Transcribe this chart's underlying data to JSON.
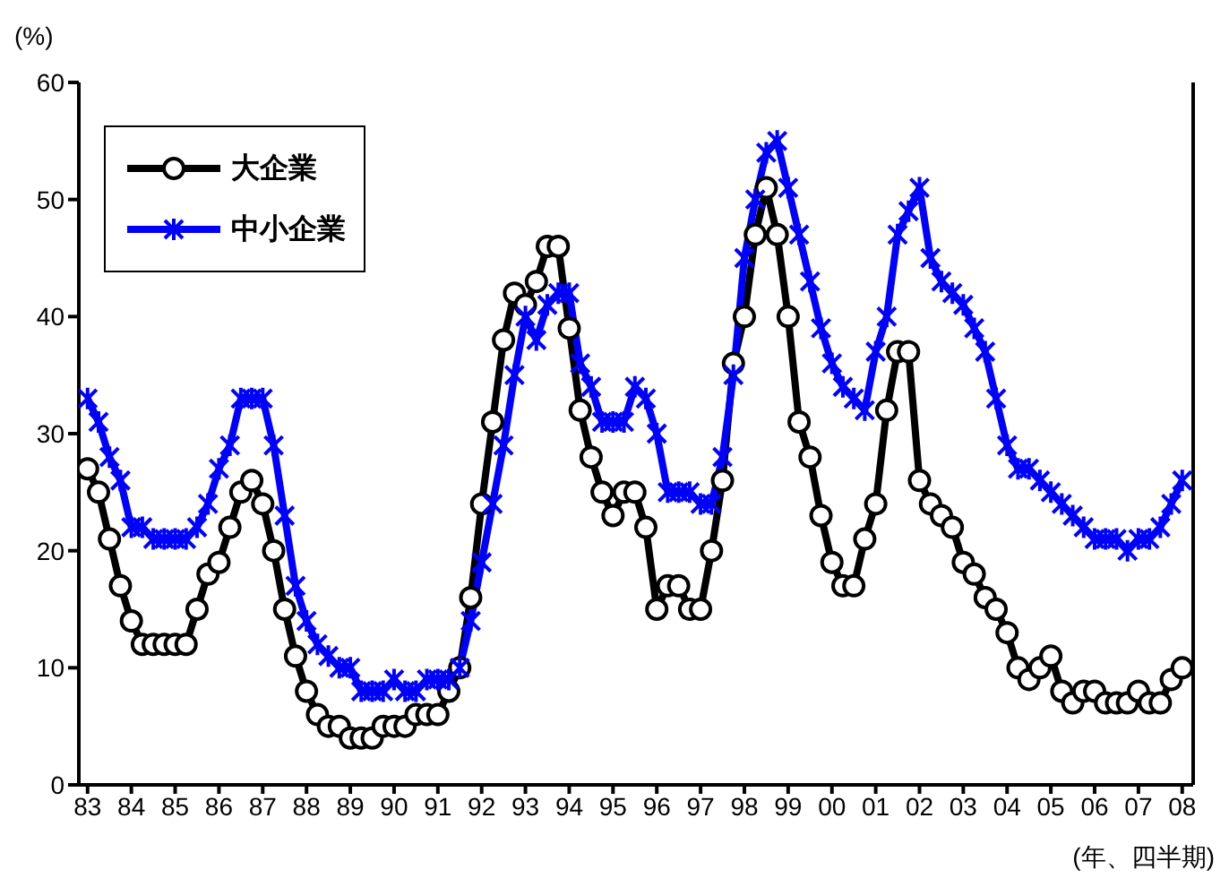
{
  "chart_data": {
    "type": "line",
    "ylabel": "(%)",
    "xlabel": "(年、四半期)",
    "x": [
      1983,
      1983.25,
      1983.5,
      1983.75,
      1984,
      1984.25,
      1984.5,
      1984.75,
      1985,
      1985.25,
      1985.5,
      1985.75,
      1986,
      1986.25,
      1986.5,
      1986.75,
      1987,
      1987.25,
      1987.5,
      1987.75,
      1988,
      1988.25,
      1988.5,
      1988.75,
      1989,
      1989.25,
      1989.5,
      1989.75,
      1990,
      1990.25,
      1990.5,
      1990.75,
      1991,
      1991.25,
      1991.5,
      1991.75,
      1992,
      1992.25,
      1992.5,
      1992.75,
      1993,
      1993.25,
      1993.5,
      1993.75,
      1994,
      1994.25,
      1994.5,
      1994.75,
      1995,
      1995.25,
      1995.5,
      1995.75,
      1996,
      1996.25,
      1996.5,
      1996.75,
      1997,
      1997.25,
      1997.5,
      1997.75,
      1998,
      1998.25,
      1998.5,
      1998.75,
      1999,
      1999.25,
      1999.5,
      1999.75,
      2000,
      2000.25,
      2000.5,
      2000.75,
      2001,
      2001.25,
      2001.5,
      2001.75,
      2002,
      2002.25,
      2002.5,
      2002.75,
      2003,
      2003.25,
      2003.5,
      2003.75,
      2004,
      2004.25,
      2004.5,
      2004.75,
      2005,
      2005.25,
      2005.5,
      2005.75,
      2006,
      2006.25,
      2006.5,
      2006.75,
      2007,
      2007.25,
      2007.5,
      2007.75,
      2008
    ],
    "series": [
      {
        "name": "大企業",
        "color": "#000000",
        "marker": "circle",
        "values": [
          27,
          25,
          21,
          17,
          14,
          12,
          12,
          12,
          12,
          12,
          15,
          18,
          19,
          22,
          25,
          26,
          24,
          20,
          15,
          11,
          8,
          6,
          5,
          5,
          4,
          4,
          4,
          5,
          5,
          5,
          6,
          6,
          6,
          8,
          10,
          16,
          24,
          31,
          38,
          42,
          41,
          43,
          46,
          46,
          39,
          32,
          28,
          25,
          23,
          25,
          25,
          22,
          15,
          17,
          17,
          15,
          15,
          20,
          26,
          36,
          40,
          47,
          51,
          47,
          40,
          31,
          28,
          23,
          19,
          17,
          17,
          21,
          24,
          32,
          37,
          37,
          26,
          24,
          23,
          22,
          19,
          18,
          16,
          15,
          13,
          10,
          9,
          10,
          11,
          8,
          7,
          8,
          8,
          7,
          7,
          7,
          8,
          7,
          7,
          9,
          10
        ]
      },
      {
        "name": "中小企業",
        "color": "#0000ff",
        "marker": "cross",
        "values": [
          33,
          31,
          28,
          26,
          22,
          22,
          21,
          21,
          21,
          21,
          22,
          24,
          27,
          29,
          33,
          33,
          33,
          29,
          23,
          17,
          14,
          12,
          11,
          10,
          10,
          8,
          8,
          8,
          9,
          8,
          8,
          9,
          9,
          9,
          10,
          14,
          19,
          24,
          29,
          35,
          40,
          38,
          41,
          42,
          42,
          36,
          34,
          31,
          31,
          31,
          34,
          33,
          30,
          25,
          25,
          25,
          24,
          24,
          28,
          35,
          45,
          50,
          54,
          55,
          51,
          47,
          43,
          39,
          36,
          34,
          33,
          32,
          37,
          40,
          47,
          49,
          51,
          45,
          43,
          42,
          41,
          39,
          37,
          33,
          29,
          27,
          27,
          26,
          25,
          24,
          23,
          22,
          21,
          21,
          21,
          20,
          21,
          21,
          22,
          24,
          26
        ]
      }
    ],
    "xlim": [
      1982.8,
      2008.25
    ],
    "xticks": [
      {
        "value": 1983,
        "label": "83"
      },
      {
        "value": 1984,
        "label": "84"
      },
      {
        "value": 1985,
        "label": "85"
      },
      {
        "value": 1986,
        "label": "86"
      },
      {
        "value": 1987,
        "label": "87"
      },
      {
        "value": 1988,
        "label": "88"
      },
      {
        "value": 1989,
        "label": "89"
      },
      {
        "value": 1990,
        "label": "90"
      },
      {
        "value": 1991,
        "label": "91"
      },
      {
        "value": 1992,
        "label": "92"
      },
      {
        "value": 1993,
        "label": "93"
      },
      {
        "value": 1994,
        "label": "94"
      },
      {
        "value": 1995,
        "label": "95"
      },
      {
        "value": 1996,
        "label": "96"
      },
      {
        "value": 1997,
        "label": "97"
      },
      {
        "value": 1998,
        "label": "98"
      },
      {
        "value": 1999,
        "label": "99"
      },
      {
        "value": 2000,
        "label": "00"
      },
      {
        "value": 2001,
        "label": "01"
      },
      {
        "value": 2002,
        "label": "02"
      },
      {
        "value": 2003,
        "label": "03"
      },
      {
        "value": 2004,
        "label": "04"
      },
      {
        "value": 2005,
        "label": "05"
      },
      {
        "value": 2006,
        "label": "06"
      },
      {
        "value": 2007,
        "label": "07"
      },
      {
        "value": 2008,
        "label": "08"
      }
    ],
    "ylim": [
      0,
      60
    ],
    "yticks": [
      0,
      10,
      20,
      30,
      40,
      50,
      60
    ],
    "grid": false,
    "legend": "top left",
    "line_style": "solid"
  }
}
